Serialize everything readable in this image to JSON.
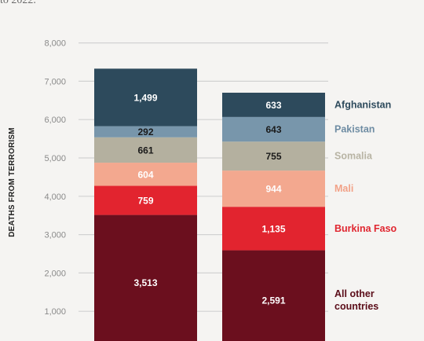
{
  "intro_text": "to 2022.",
  "chart_data": {
    "type": "bar",
    "stacked": true,
    "ylabel": "DEATHS FROM TERRORISM",
    "ylim": [
      0,
      8000
    ],
    "yticks": [
      1000,
      2000,
      3000,
      4000,
      5000,
      6000,
      7000,
      8000
    ],
    "ytick_labels": [
      "1,000",
      "2,000",
      "3,000",
      "4,000",
      "5,000",
      "6,000",
      "7,000",
      "8,000"
    ],
    "grid": true,
    "legend_position": "right of the second bar",
    "series": [
      {
        "name": "All other countries",
        "color": "#6b0f1e",
        "label_color": "#ffffff",
        "legend_color": "#5a0c18",
        "values": [
          3513,
          2591
        ],
        "labels": [
          "3,513",
          "2,591"
        ]
      },
      {
        "name": "Burkina Faso",
        "color": "#e2242f",
        "label_color": "#ffffff",
        "legend_color": "#e02630",
        "values": [
          759,
          1135
        ],
        "labels": [
          "759",
          "1,135"
        ]
      },
      {
        "name": "Mali",
        "color": "#f3a88f",
        "label_color": "#ffffff",
        "legend_color": "#f2a288",
        "values": [
          604,
          944
        ],
        "labels": [
          "604",
          "944"
        ]
      },
      {
        "name": "Somalia",
        "color": "#b4b09f",
        "label_color": "#1a1a1a",
        "legend_color": "#b8b4a4",
        "values": [
          661,
          755
        ],
        "labels": [
          "661",
          "755"
        ]
      },
      {
        "name": "Pakistan",
        "color": "#7896ab",
        "label_color": "#1a1a1a",
        "legend_color": "#6e8ca3",
        "values": [
          292,
          643
        ],
        "labels": [
          "292",
          "643"
        ]
      },
      {
        "name": "Afghanistan",
        "color": "#2d4a5c",
        "label_color": "#ffffff",
        "legend_color": "#2d4a5c",
        "values": [
          1499,
          633
        ],
        "labels": [
          "1,499",
          "633"
        ]
      }
    ]
  }
}
